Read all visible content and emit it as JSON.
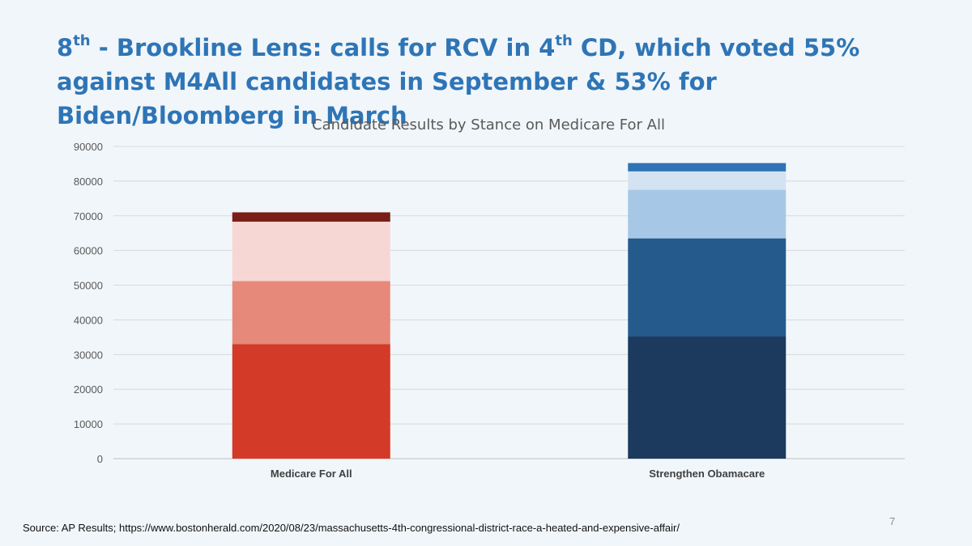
{
  "slide": {
    "title_parts": [
      {
        "text": "8",
        "sup": false
      },
      {
        "text": "th",
        "sup": true
      },
      {
        "text": " - Brookline Lens: calls for RCV in 4",
        "sup": false
      },
      {
        "text": "th",
        "sup": true
      },
      {
        "text": " CD, which voted 55% against M4All candidates in September & 53% for Biden/Bloomberg in March",
        "sup": false
      }
    ],
    "source": "Source: AP Results; https://www.bostonherald.com/2020/08/23/massachusetts-4th-congressional-district-race-a-heated-and-expensive-affair/",
    "page_number": "7"
  },
  "chart_data": {
    "type": "bar",
    "stacked": true,
    "title": "Candidate Results by Stance on Medicare For All",
    "xlabel": "",
    "ylabel": "",
    "ylim": [
      0,
      90000
    ],
    "yticks": [
      0,
      10000,
      20000,
      30000,
      40000,
      50000,
      60000,
      70000,
      80000,
      90000
    ],
    "grid": true,
    "categories": [
      "Medicare For All",
      "Strengthen Obamacare"
    ],
    "stacks": [
      {
        "category": "Medicare For All",
        "segments": [
          {
            "value": 33000,
            "color": "#d33a27"
          },
          {
            "value": 18200,
            "color": "#e6897b"
          },
          {
            "value": 17100,
            "color": "#f7d7d4"
          },
          {
            "value": 2700,
            "color": "#7a1e17"
          }
        ]
      },
      {
        "category": "Strengthen Obamacare",
        "segments": [
          {
            "value": 35200,
            "color": "#1b3a5d"
          },
          {
            "value": 28300,
            "color": "#255a8c"
          },
          {
            "value": 14000,
            "color": "#a6c8e6"
          },
          {
            "value": 5300,
            "color": "#d3e3f1"
          },
          {
            "value": 2400,
            "color": "#2e74b5"
          }
        ]
      }
    ]
  }
}
